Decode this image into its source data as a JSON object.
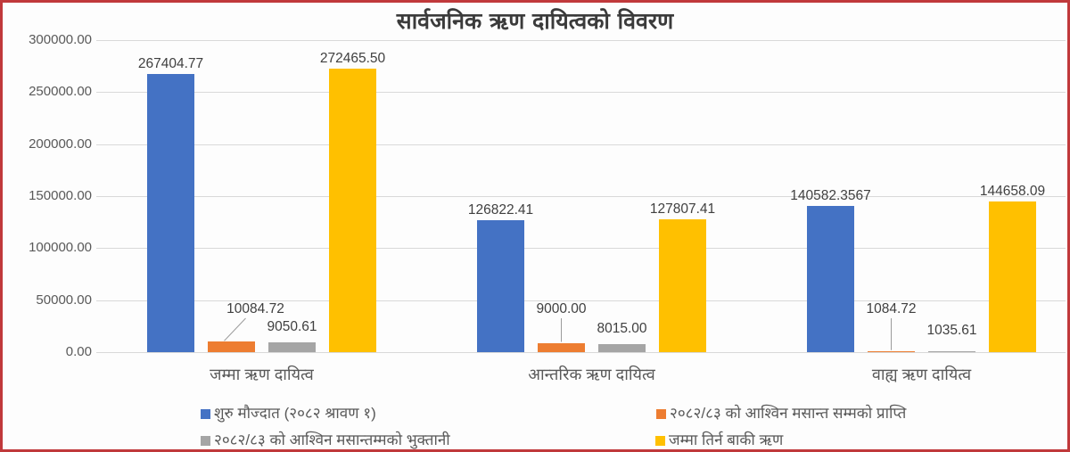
{
  "title": "सार्वजनिक ऋण दायित्वको विवरण",
  "chart_data": {
    "type": "bar",
    "title": "सार्वजनिक ऋण दायित्वको विवरण",
    "xlabel": "",
    "ylabel": "",
    "categories": [
      "जम्मा ऋण दायित्व",
      "आन्तरिक ऋण दायित्व",
      "वाह्य ऋण दायित्व"
    ],
    "series": [
      {
        "name": "शुरु मौज्दात (२०८२ श्रावण १)",
        "color": "#4472C4",
        "values": [
          267404.77,
          126822.41,
          140582.3567
        ],
        "labels": [
          "267404.77",
          "126822.41",
          "140582.3567"
        ]
      },
      {
        "name": "२०८२/८३ को आश्विन मसान्त सम्मको प्राप्ति",
        "color": "#ED7D31",
        "values": [
          10084.72,
          9000.0,
          1084.72
        ],
        "labels": [
          "10084.72",
          "9000.00",
          "1084.72"
        ]
      },
      {
        "name": "२०८२/८३ को आश्विन मसान्तम्मको भुक्तानी",
        "color": "#A5A5A5",
        "values": [
          9050.61,
          8015.0,
          1035.61
        ],
        "labels": [
          "9050.61",
          "8015.00",
          "1035.61"
        ]
      },
      {
        "name": "जम्मा तिर्न बाकी ऋण",
        "color": "#FFC000",
        "values": [
          272465.5,
          127807.41,
          144658.09
        ],
        "labels": [
          "272465.50",
          "127807.41",
          "144658.09"
        ]
      }
    ],
    "ylim": [
      0,
      300000
    ],
    "ytick_step": 50000,
    "ytick_labels": [
      "0.00",
      "50000.00",
      "100000.00",
      "150000.00",
      "200000.00",
      "250000.00",
      "300000.00"
    ],
    "grid": true,
    "legend_position": "bottom"
  },
  "colors": {
    "frame_border": "#C0393B",
    "gridline": "#D9D9D9",
    "axis_text": "#595959",
    "data_label_text": "#404040",
    "title_text": "#3B3B3B",
    "leader_line": "#9B9B9B"
  }
}
